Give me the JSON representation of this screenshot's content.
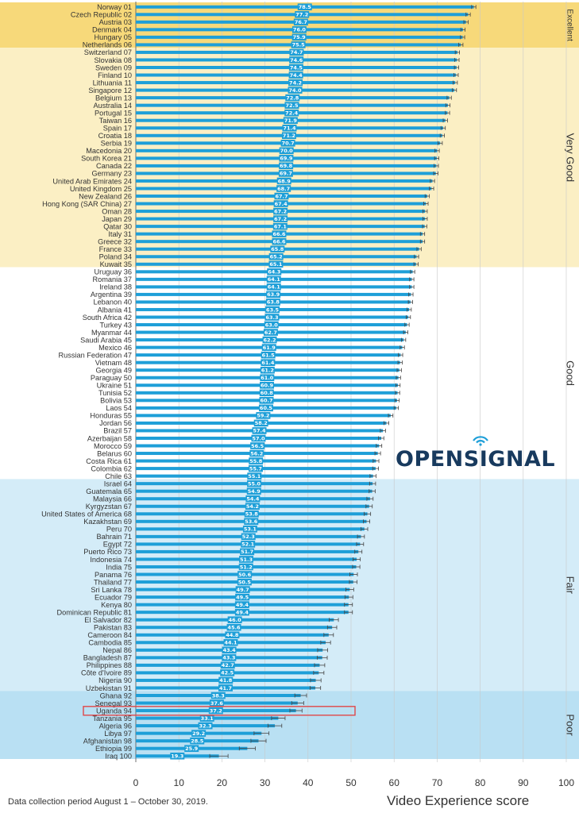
{
  "chart_data": {
    "type": "bar",
    "orientation": "horizontal",
    "xlabel": "Video Experience score",
    "xlim": [
      0,
      100
    ],
    "xticks": [
      0,
      10,
      20,
      30,
      40,
      50,
      60,
      70,
      80,
      90,
      100
    ],
    "grid": true,
    "error_bars": true,
    "bar_color": "#1e9fd8",
    "highlight_color": "#e0484a",
    "highlighted_category": "Uganda 94",
    "bands": [
      {
        "label": "Excellent",
        "from_rank": 1,
        "to_rank": 6,
        "color": "#f7d97a"
      },
      {
        "label": "Very Good",
        "from_rank": 7,
        "to_rank": 35,
        "color": "#fbefc4"
      },
      {
        "label": "Good",
        "from_rank": 36,
        "to_rank": 63,
        "color": "#ffffff"
      },
      {
        "label": "Fair",
        "from_rank": 64,
        "to_rank": 91,
        "color": "#d4ecf8"
      },
      {
        "label": "Poor",
        "from_rank": 92,
        "to_rank": 100,
        "color": "#b9e0f3"
      }
    ],
    "categories": [
      "Norway 01",
      "Czech Republic 02",
      "Austria 03",
      "Denmark 04",
      "Hungary 05",
      "Netherlands 06",
      "Switzerland 07",
      "Slovakia 08",
      "Sweden 09",
      "Finland 10",
      "Lithuania 11",
      "Singapore 12",
      "Belgium 13",
      "Australia 14",
      "Portugal 15",
      "Taiwan 16",
      "Spain 17",
      "Croatia 18",
      "Serbia 19",
      "Macedonia 20",
      "South Korea 21",
      "Canada 22",
      "Germany 23",
      "United Arab Emirates 24",
      "United Kingdom 25",
      "New Zealand 26",
      "Hong Kong (SAR China) 27",
      "Oman 28",
      "Japan 29",
      "Qatar 30",
      "Italy 31",
      "Greece 32",
      "France 33",
      "Poland 34",
      "Kuwait 35",
      "Uruguay 36",
      "Romania 37",
      "Ireland 38",
      "Argentina 39",
      "Lebanon 40",
      "Albania 41",
      "South Africa 42",
      "Turkey 43",
      "Myanmar 44",
      "Saudi Arabia 45",
      "Mexico 46",
      "Russian Federation 47",
      "Vietnam 48",
      "Georgia 49",
      "Paraguay 50",
      "Ukraine 51",
      "Tunisia 52",
      "Bolivia 53",
      "Laos 54",
      "Honduras 55",
      "Jordan 56",
      "Brazil 57",
      "Azerbaijan 58",
      "Morocco 59",
      "Belarus 60",
      "Costa Rica 61",
      "Colombia 62",
      "Chile 63",
      "Israel 64",
      "Guatemala 65",
      "Malaysia 66",
      "Kyrgyzstan 67",
      "United States of America 68",
      "Kazakhstan 69",
      "Peru 70",
      "Bahrain 71",
      "Egypt 72",
      "Puerto Rico 73",
      "Indonesia 74",
      "India 75",
      "Panama 76",
      "Thailand 77",
      "Sri Lanka 78",
      "Ecuador 79",
      "Kenya 80",
      "Dominican Republic 81",
      "El Salvador 82",
      "Pakistan 83",
      "Cameroon 84",
      "Cambodia 85",
      "Nepal 86",
      "Bangladesh 87",
      "Philippines 88",
      "Côte d'Ivoire 89",
      "Nigeria 90",
      "Uzbekistan 91",
      "Ghana 92",
      "Senegal 93",
      "Uganda 94",
      "Tanzania 95",
      "Algeria 96",
      "Libya 97",
      "Afghanistan 98",
      "Ethiopia 99",
      "Iraq 100"
    ],
    "values": [
      78.5,
      77.2,
      76.7,
      76.0,
      75.9,
      75.5,
      74.7,
      74.6,
      74.5,
      74.4,
      74.2,
      74.0,
      72.8,
      72.5,
      72.4,
      71.9,
      71.4,
      71.2,
      70.7,
      70.0,
      69.9,
      69.8,
      69.7,
      68.9,
      68.7,
      67.7,
      67.4,
      67.2,
      67.2,
      67.1,
      66.6,
      66.6,
      65.8,
      65.2,
      65.1,
      64.3,
      64.1,
      64.1,
      63.9,
      63.8,
      63.5,
      63.3,
      63.0,
      62.7,
      62.2,
      61.9,
      61.5,
      61.4,
      61.2,
      61.0,
      60.9,
      60.8,
      60.7,
      60.5,
      59.2,
      58.2,
      57.4,
      57.0,
      56.5,
      56.2,
      55.8,
      55.7,
      55.1,
      55.0,
      54.9,
      54.4,
      54.2,
      53.8,
      53.6,
      53.1,
      52.3,
      52.1,
      51.7,
      51.3,
      51.2,
      50.6,
      50.5,
      49.7,
      49.5,
      49.4,
      49.4,
      46.0,
      45.6,
      44.8,
      44.1,
      43.4,
      43.3,
      42.7,
      42.5,
      41.8,
      41.7,
      38.3,
      37.6,
      37.2,
      33.1,
      32.3,
      29.2,
      28.5,
      25.9,
      19.3
    ],
    "labels": [
      "78.5",
      "77.2",
      "76.7",
      "76.0",
      "75.9",
      "75.5",
      "74.7",
      "74.6",
      "74.5",
      "74.4",
      "74.2",
      "74.0",
      "72.8",
      "72.5",
      "72.4",
      "71.9",
      "71.4",
      "71.2",
      "70.7",
      "70.0",
      "69.9",
      "69.8",
      "69.7",
      "68.9",
      "68.7",
      "67.7",
      "67.4",
      "67.2",
      "67.2",
      "67.1",
      "66.6",
      "66.6",
      "65.8",
      "65.2",
      "65.1",
      "64.3",
      "64.1",
      "64.1",
      "63.9",
      "63.8",
      "63.5",
      "63.3",
      "63.0",
      "62.7",
      "62.2",
      "61.9",
      "61.5",
      "61.4",
      "61.2",
      "61.0",
      "60.9",
      "60.8",
      "60.7",
      "60.5",
      "59.2",
      "58.2",
      "57.4",
      "57.0",
      "56.5",
      "56.2",
      "55.8",
      "55.7",
      "55.1",
      "55.0",
      "54.9",
      "54.4",
      "54.2",
      "53.8",
      "53.6",
      "53.1",
      "52.3",
      "52.1",
      "51.7",
      "51.3",
      "51.2",
      "50.6",
      "50.5",
      "49.7",
      "49.5",
      "49.4",
      "49.4",
      "46.0",
      "45.6",
      "44.8",
      "44.1",
      "43.4",
      "43.3",
      "42.7",
      "42.5",
      "41.8",
      "41.7",
      "38.3",
      "37.6",
      "37.2",
      "33.1",
      "32.3",
      "29.2",
      "28.5",
      "25.9",
      "19.3"
    ]
  },
  "branding": {
    "logo_text": "OPENSIGNAL"
  },
  "footnote": "Data collection period August 1 – October  30, 2019."
}
